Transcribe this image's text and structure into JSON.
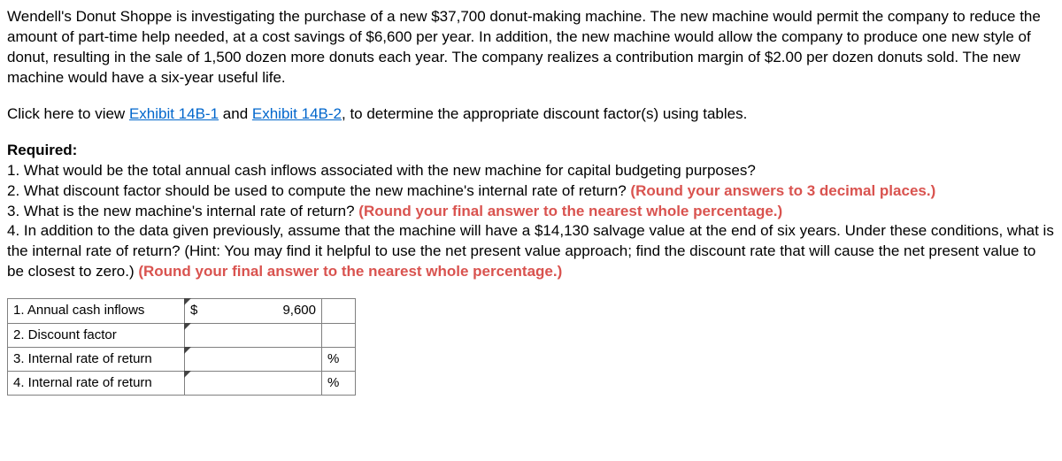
{
  "intro": {
    "text": "Wendell's Donut Shoppe is investigating the purchase of a new $37,700 donut-making machine. The new machine would permit the company to reduce the amount of part-time help needed, at a cost savings of $6,600 per year. In addition, the new machine would allow the company to produce one new style of donut, resulting in the sale of 1,500 dozen more donuts each year. The company realizes a contribution margin of $2.00 per dozen donuts sold. The new machine would have a six-year useful life."
  },
  "click_prefix": "Click here to view ",
  "exhibit1": "Exhibit 14B-1",
  "exhibit_and": " and ",
  "exhibit2": "Exhibit 14B-2",
  "click_suffix": ", to determine the appropriate discount factor(s) using tables.",
  "required_label": "Required:",
  "q1": "1. What would be the total annual cash inflows associated with the new machine for capital budgeting purposes?",
  "q2a": "2. What discount factor should be used to compute the new machine's internal rate of return? ",
  "q2b": "(Round your answers to 3 decimal places.)",
  "q3a": "3. What is the new machine's internal rate of return? ",
  "q3b": "(Round your final answer to the nearest whole percentage.)",
  "q4a": "4. In addition to the data given previously, assume that the machine will have a $14,130 salvage value at the end of six years. Under these conditions, what is the internal rate of return? (Hint: You may find it helpful to use the net present value approach; find the discount rate that will cause the net present value to be closest to zero.) ",
  "q4b": "(Round your final answer to the nearest whole percentage.)",
  "table": {
    "row1_label": "1. Annual cash inflows",
    "row1_currency": "$",
    "row1_value": "9,600",
    "row2_label": "2. Discount factor",
    "row3_label": "3. Internal rate of return",
    "row3_unit": "%",
    "row4_label": "4. Internal rate of return",
    "row4_unit": "%"
  },
  "colors": {
    "link": "#0066cc",
    "hint": "#d9534f",
    "border": "#808080",
    "text": "#000000"
  }
}
